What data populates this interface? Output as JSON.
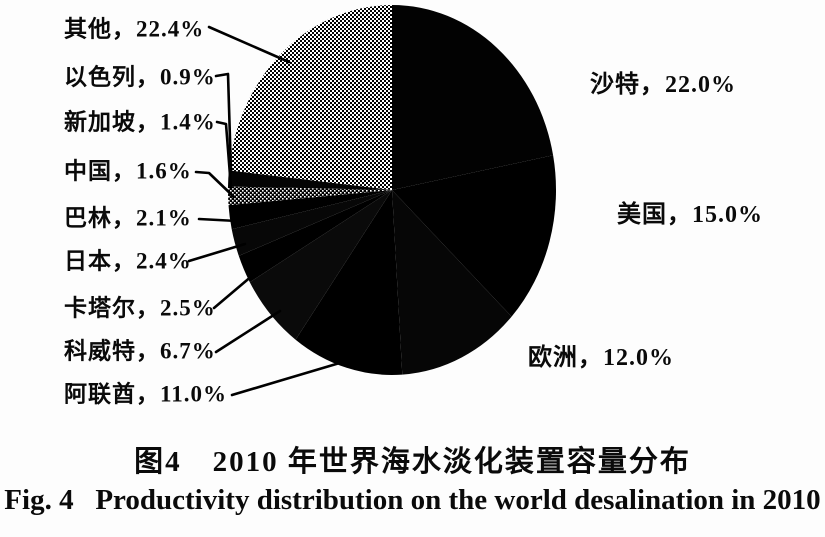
{
  "figure": {
    "caption_zh": "图4　2010 年世界海水淡化装置容量分布",
    "caption_en": "Fig. 4   Productivity distribution on the world desalination in 2010"
  },
  "chart_data": {
    "type": "pie",
    "title": "2010 年世界海水淡化装置容量分布",
    "title_en": "Productivity distribution on the world desalination in 2010",
    "unit": "%",
    "total": 100.0,
    "start_angle_deg": 0,
    "direction": "clockwise",
    "legend_position": "none",
    "label_style": "name-comma-percent, leader lines on left side",
    "segments": [
      {
        "name": "沙特",
        "value": 22.0,
        "fill": "#020202"
      },
      {
        "name": "美国",
        "value": 15.0,
        "fill": "#000000"
      },
      {
        "name": "欧洲",
        "value": 12.0,
        "fill": "#060606"
      },
      {
        "name": "阿联酋",
        "value": 11.0,
        "fill": "#000000"
      },
      {
        "name": "科威特",
        "value": 6.7,
        "fill": "#0a0a0a"
      },
      {
        "name": "卡塔尔",
        "value": 2.5,
        "fill": "#000000"
      },
      {
        "name": "日本",
        "value": 2.4,
        "fill": "#070707"
      },
      {
        "name": "巴林",
        "value": 2.1,
        "fill": "#000000"
      },
      {
        "name": "中国",
        "value": 1.6,
        "fill": "dither-dark"
      },
      {
        "name": "新加坡",
        "value": 1.4,
        "fill": "#040404"
      },
      {
        "name": "以色列",
        "value": 0.9,
        "fill": "dither-mid"
      },
      {
        "name": "其他",
        "value": 22.4,
        "fill": "dither-mid"
      }
    ]
  }
}
